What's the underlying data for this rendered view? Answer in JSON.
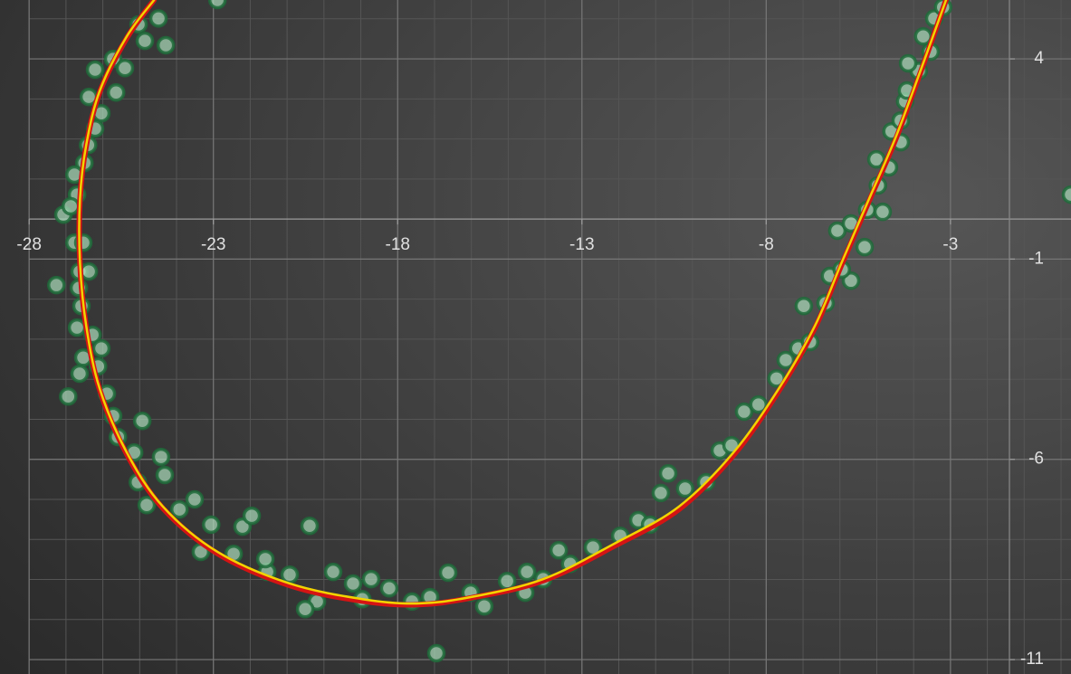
{
  "chart_data": {
    "type": "scatter",
    "xlim": [
      -28.79,
      0.27
    ],
    "ylim": [
      -11.36,
      5.47
    ],
    "xticks": [
      -28,
      -23,
      -18,
      -13,
      -8,
      -3
    ],
    "yticks": [
      4,
      -1,
      -6,
      -11
    ],
    "x_minor_ticks": [
      -28,
      -27,
      -26,
      -25,
      -24,
      -23,
      -22,
      -21,
      -20,
      -19,
      -18,
      -17,
      -16,
      -15,
      -14,
      -13,
      -12,
      -11,
      -10,
      -9,
      -8,
      -7,
      -6,
      -5,
      -4,
      -3,
      -2,
      -1,
      0
    ],
    "y_minor_ticks": [
      -11,
      -10,
      -9,
      -8,
      -7,
      -6,
      -5,
      -4,
      -3,
      -2,
      -1,
      0,
      1,
      2,
      3,
      4,
      5
    ],
    "grid": true,
    "series": [
      {
        "type": "scatter",
        "color": "#a9d9b9",
        "edgecolor": "#1e6b3a",
        "x": [
          -25.03,
          -24.86,
          -24.29,
          -24.49,
          -25.72,
          -26.21,
          -25.4,
          -25.64,
          -26.38,
          -26.04,
          -26.21,
          -26.4,
          -26.5,
          -26.77,
          -26.7,
          -27.07,
          -26.87,
          -26.77,
          -26.53,
          -27.26,
          -26.63,
          -26.38,
          -26.65,
          -26.58,
          -26.7,
          -26.28,
          -26.04,
          -26.53,
          -26.13,
          -26.63,
          -26.94,
          -25.89,
          -25.72,
          -24.93,
          -25.59,
          -25.15,
          -24.42,
          -25.05,
          -24.32,
          -24.81,
          -23.51,
          -23.92,
          -23.06,
          -22.21,
          -21.96,
          -23.34,
          -22.45,
          -21.54,
          -21.59,
          -20.93,
          -20.39,
          -19.75,
          -19.21,
          -18.72,
          -20.19,
          -20.51,
          -18.96,
          -18.23,
          -17.61,
          -17.12,
          -16.63,
          -16.95,
          -16.02,
          -15.65,
          -15.03,
          -14.49,
          -14.54,
          -14.05,
          -13.63,
          -13.32,
          -12.7,
          -11.96,
          -11.47,
          -11.15,
          -10.66,
          -10.86,
          -10.2,
          -9.63,
          -9.26,
          -8.94,
          -8.6,
          -8.21,
          -7.72,
          -7.47,
          -7.13,
          -6.98,
          -6.81,
          -6.39,
          -6.27,
          -5.7,
          -5.95,
          -6.07,
          -5.7,
          -5.33,
          -5.26,
          -4.84,
          -4.97,
          -5.01,
          -4.67,
          -4.35,
          -4.6,
          -4.35,
          -4.23,
          -4.18,
          -3.86,
          -4.15,
          -3.74,
          -3.44,
          -3.2,
          -3.54,
          0.27,
          -22.89
        ],
        "values": [
          4.86,
          4.45,
          4.34,
          5.01,
          4.0,
          3.73,
          3.77,
          3.16,
          3.05,
          2.64,
          2.26,
          1.85,
          1.4,
          1.11,
          0.61,
          0.11,
          0.32,
          -0.59,
          -0.59,
          -1.65,
          -1.31,
          -1.31,
          -1.72,
          -2.17,
          -2.71,
          -2.89,
          -3.23,
          -3.46,
          -3.68,
          -3.86,
          -4.43,
          -4.36,
          -4.92,
          -5.04,
          -5.44,
          -5.83,
          -5.94,
          -6.57,
          -6.39,
          -7.14,
          -7.0,
          -7.25,
          -7.63,
          -7.68,
          -7.41,
          -8.31,
          -8.36,
          -8.81,
          -8.49,
          -8.88,
          -7.66,
          -8.81,
          -9.1,
          -8.99,
          -9.55,
          -9.74,
          -9.49,
          -9.22,
          -9.55,
          -9.44,
          -8.83,
          -10.84,
          -9.33,
          -9.67,
          -9.04,
          -8.81,
          -9.33,
          -8.99,
          -8.27,
          -8.61,
          -8.2,
          -7.91,
          -7.52,
          -7.63,
          -6.35,
          -6.84,
          -6.73,
          -6.57,
          -5.78,
          -5.65,
          -4.81,
          -4.63,
          -3.98,
          -3.52,
          -3.23,
          -2.17,
          -3.07,
          -2.1,
          -1.42,
          -1.54,
          -1.26,
          -0.29,
          -0.11,
          -0.7,
          0.23,
          0.18,
          0.84,
          1.49,
          1.29,
          1.92,
          2.19,
          2.46,
          2.94,
          3.21,
          3.7,
          3.89,
          4.56,
          5.01,
          5.29,
          4.18,
          0.61,
          5.47
        ]
      },
      {
        "type": "line",
        "color": "#d41414",
        "width": 6,
        "x": [
          -24.61,
          -25.35,
          -26.08,
          -26.45,
          -26.62,
          -26.62,
          -26.45,
          -26.08,
          -25.35,
          -24.37,
          -22.89,
          -20.93,
          -18.96,
          -17.49,
          -16.02,
          -14.05,
          -12.09,
          -10.37,
          -8.89,
          -7.67,
          -6.68,
          -5.95,
          -5.21,
          -4.47,
          -3.74,
          -3.12
        ],
        "values": [
          5.47,
          4.52,
          3.18,
          1.83,
          0.48,
          -1.1,
          -2.7,
          -4.28,
          -5.87,
          -7.22,
          -8.35,
          -9.15,
          -9.54,
          -9.63,
          -9.46,
          -9.03,
          -8.15,
          -7.25,
          -5.9,
          -4.31,
          -2.72,
          -1.13,
          0.45,
          2.03,
          3.85,
          5.47
        ]
      },
      {
        "type": "line",
        "color": "#f2d400",
        "width": 2.5,
        "x": [
          -24.61,
          -25.35,
          -26.08,
          -26.45,
          -26.62,
          -26.62,
          -26.45,
          -26.08,
          -25.35,
          -24.37,
          -22.89,
          -20.93,
          -18.96,
          -17.49,
          -16.02,
          -14.05,
          -12.09,
          -10.37,
          -8.89,
          -7.67,
          -6.68,
          -5.95,
          -5.21,
          -4.47,
          -3.74,
          -3.12
        ],
        "values": [
          5.47,
          4.56,
          3.21,
          1.85,
          0.5,
          -1.08,
          -2.67,
          -4.25,
          -5.83,
          -7.18,
          -8.31,
          -9.1,
          -9.49,
          -9.6,
          -9.44,
          -8.99,
          -8.09,
          -7.18,
          -5.83,
          -4.25,
          -2.67,
          -1.08,
          0.5,
          2.08,
          3.89,
          5.47
        ]
      }
    ]
  }
}
